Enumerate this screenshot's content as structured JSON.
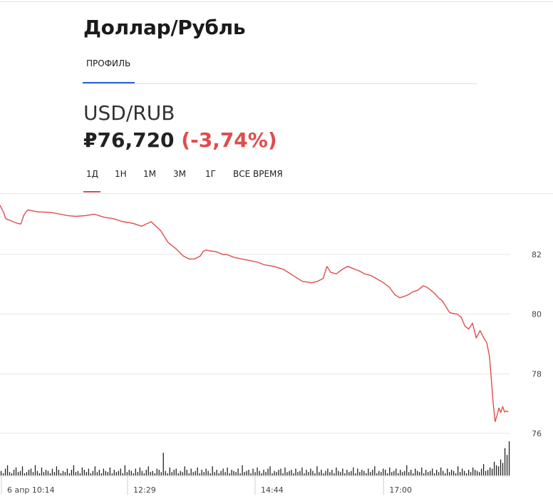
{
  "header": {
    "title": "Доллар/Рубль",
    "tab_profile": "ПРОФИЛЬ"
  },
  "quote": {
    "symbol": "USD/RUB",
    "price": "₽76,720",
    "change": "(-3,74%)"
  },
  "ranges": [
    "1Д",
    "1Н",
    "1М",
    "3М",
    "1Г",
    "ВСЕ ВРЕМЯ"
  ],
  "colors": {
    "line": "#e04c4c",
    "accent_blue": "#2a62d6",
    "volume": "#222222",
    "grid": "#e6e6e6"
  },
  "chart_data": {
    "type": "line",
    "y_ticks": [
      82,
      80,
      78,
      76
    ],
    "ylim": [
      75.9,
      83.8
    ],
    "x_tick_labels": [
      "6 апр 10:14",
      "12:29",
      "14:44",
      "17:00"
    ],
    "x_ticks": [
      0,
      135,
      270,
      406
    ],
    "xlim": [
      0,
      540
    ],
    "series": [
      {
        "x": [
          0,
          4,
          6,
          10,
          14,
          18,
          22,
          25,
          28,
          30,
          32,
          36,
          40,
          48,
          56,
          64,
          72,
          80,
          90,
          100,
          110,
          120,
          130,
          140,
          150,
          160,
          170,
          178,
          186,
          194,
          200,
          206,
          212,
          215,
          218,
          222,
          228,
          232,
          236,
          240,
          248,
          256,
          264,
          272,
          280,
          290,
          300,
          310,
          320,
          330,
          336,
          342,
          346,
          350,
          356,
          362,
          368,
          372,
          376,
          380,
          386,
          392,
          398,
          406,
          412,
          418,
          423,
          428,
          432,
          437,
          442,
          448,
          452,
          456,
          460,
          464,
          468,
          472,
          476,
          480,
          484,
          488,
          492,
          496,
          500,
          504,
          508,
          512,
          515,
          518,
          520,
          522,
          524,
          526,
          528,
          530,
          532,
          534,
          536,
          538
        ],
        "y": [
          83.65,
          83.4,
          83.2,
          83.15,
          83.1,
          83.05,
          83.02,
          83.3,
          83.45,
          83.5,
          83.48,
          83.45,
          83.43,
          83.42,
          83.4,
          83.35,
          83.3,
          83.28,
          83.3,
          83.35,
          83.25,
          83.2,
          83.1,
          83.05,
          82.95,
          83.1,
          82.8,
          82.4,
          82.2,
          81.95,
          81.85,
          81.85,
          81.95,
          82.1,
          82.15,
          82.12,
          82.1,
          82.05,
          82.0,
          82.0,
          81.9,
          81.85,
          81.8,
          81.75,
          81.65,
          81.6,
          81.5,
          81.3,
          81.1,
          81.05,
          81.1,
          81.2,
          81.6,
          81.4,
          81.35,
          81.5,
          81.6,
          81.55,
          81.5,
          81.45,
          81.35,
          81.3,
          81.2,
          81.05,
          80.9,
          80.65,
          80.55,
          80.6,
          80.65,
          80.75,
          80.8,
          80.95,
          80.9,
          80.8,
          80.7,
          80.55,
          80.45,
          80.25,
          80.05,
          80.02,
          80.0,
          79.9,
          79.6,
          79.5,
          79.7,
          79.2,
          79.45,
          79.2,
          79.05,
          78.6,
          77.8,
          77.0,
          76.4,
          76.6,
          76.85,
          76.7,
          76.9,
          76.72,
          76.75,
          76.72
        ]
      }
    ],
    "volume": [
      4,
      2,
      6,
      9,
      3,
      2,
      5,
      7,
      3,
      4,
      8,
      2,
      3,
      5,
      6,
      3,
      9,
      4,
      2,
      7,
      3,
      5,
      4,
      2,
      6,
      3,
      8,
      5,
      2,
      4,
      3,
      6,
      2,
      5,
      9,
      3,
      4,
      2,
      7,
      5,
      3,
      6,
      2,
      4,
      8,
      3,
      5,
      2,
      6,
      4,
      3,
      7,
      2,
      5,
      3,
      4,
      6,
      2,
      9,
      3,
      5,
      4,
      2,
      6,
      3,
      7,
      4,
      2,
      5,
      8,
      3,
      4,
      2,
      6,
      5,
      3,
      20,
      4,
      2,
      7,
      3,
      5,
      6,
      2,
      4,
      3,
      8,
      5,
      2,
      6,
      3,
      4,
      7,
      2,
      5,
      3,
      6,
      4,
      2,
      8,
      3,
      5,
      2,
      4,
      6,
      3,
      7,
      2,
      5,
      4,
      3,
      6,
      2,
      9,
      3,
      4,
      5,
      2,
      6,
      3,
      7,
      4,
      2,
      5,
      3,
      6,
      8,
      2,
      4,
      3,
      5,
      6,
      2,
      7,
      3,
      4,
      5,
      2,
      6,
      3,
      4,
      7,
      2,
      5,
      3,
      6,
      4,
      2,
      8,
      3,
      5,
      2,
      4,
      6,
      3,
      5,
      2,
      7,
      4,
      3,
      6,
      2,
      5,
      3,
      4,
      7,
      2,
      6,
      3,
      5,
      4,
      2,
      6,
      3,
      5,
      8,
      2,
      4,
      3,
      6,
      5,
      2,
      7,
      3,
      4,
      6,
      2,
      5,
      3,
      4,
      9,
      3,
      5,
      2,
      6,
      4,
      3,
      7,
      2,
      5,
      3,
      4,
      6,
      2,
      5,
      3,
      7,
      4,
      2,
      6,
      3,
      5,
      4,
      2,
      8,
      3,
      6,
      4,
      2,
      5,
      3,
      7,
      5,
      4,
      3,
      6,
      10,
      4,
      5,
      7,
      6,
      12,
      9,
      8,
      14,
      11,
      24,
      18,
      30
    ]
  }
}
